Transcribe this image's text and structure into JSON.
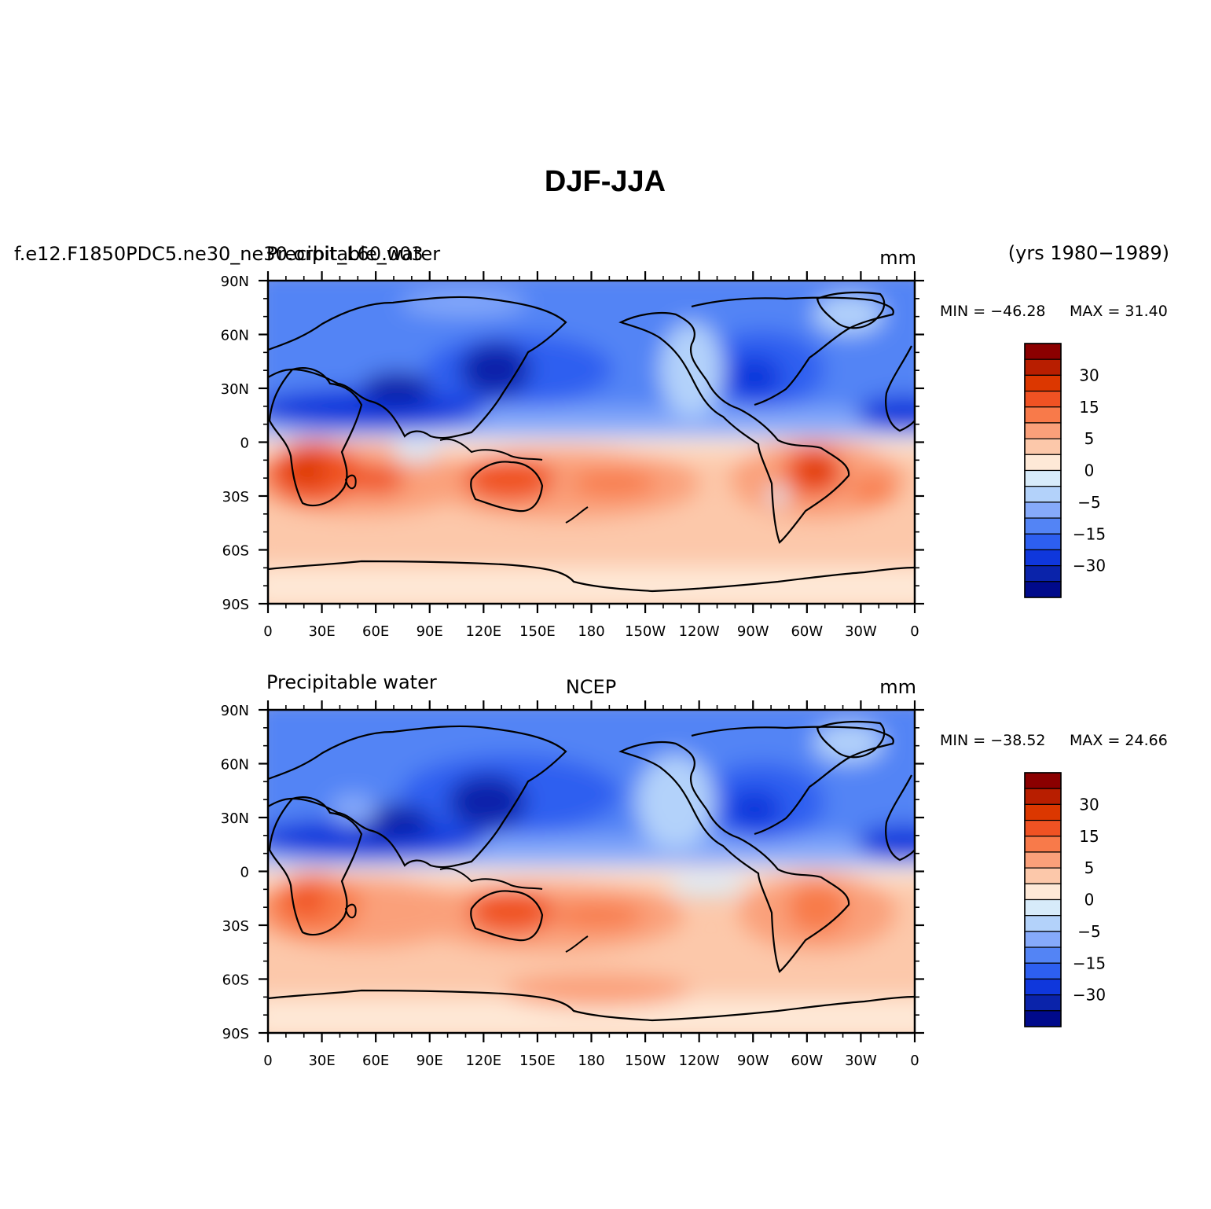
{
  "figure": {
    "title": "DJF-JJA",
    "case_name": "f.e12.F1850PDC5.ne30_ne30.orbit_L60.003",
    "years_label": "(yrs 1980−1989)"
  },
  "axes": {
    "lat_ticks": [
      "90N",
      "60N",
      "30N",
      "0",
      "30S",
      "60S",
      "90S"
    ],
    "lon_ticks": [
      "0",
      "30E",
      "60E",
      "90E",
      "120E",
      "150E",
      "180",
      "150W",
      "120W",
      "90W",
      "60W",
      "30W",
      "0"
    ]
  },
  "colorbar": {
    "levels": [
      -40,
      -35,
      -30,
      -25,
      -20,
      -15,
      -10,
      -5,
      -2,
      0,
      2,
      5,
      10,
      15,
      20,
      25,
      30,
      35
    ],
    "labels": [
      "30",
      "15",
      "5",
      "0",
      "−5",
      "−15",
      "−30"
    ],
    "colors": [
      "#8b0000",
      "#b81e00",
      "#dc3700",
      "#f05223",
      "#f87a4a",
      "#faa07a",
      "#fcc8aa",
      "#fee9d7",
      "#d7ebfa",
      "#b3d2fa",
      "#86aafa",
      "#5384f5",
      "#2d5ff0",
      "#0f37dc",
      "#0a23aa",
      "#000a8b"
    ]
  },
  "panels": [
    {
      "left_title": "Precipitable_water",
      "center_title": "",
      "units": "mm",
      "min_label": "MIN = −46.28",
      "max_label": "MAX =  31.40"
    },
    {
      "left_title": "Precipitable water",
      "center_title": "NCEP",
      "units": "mm",
      "min_label": "MIN = −38.52",
      "max_label": "MAX =  24.66"
    }
  ]
}
